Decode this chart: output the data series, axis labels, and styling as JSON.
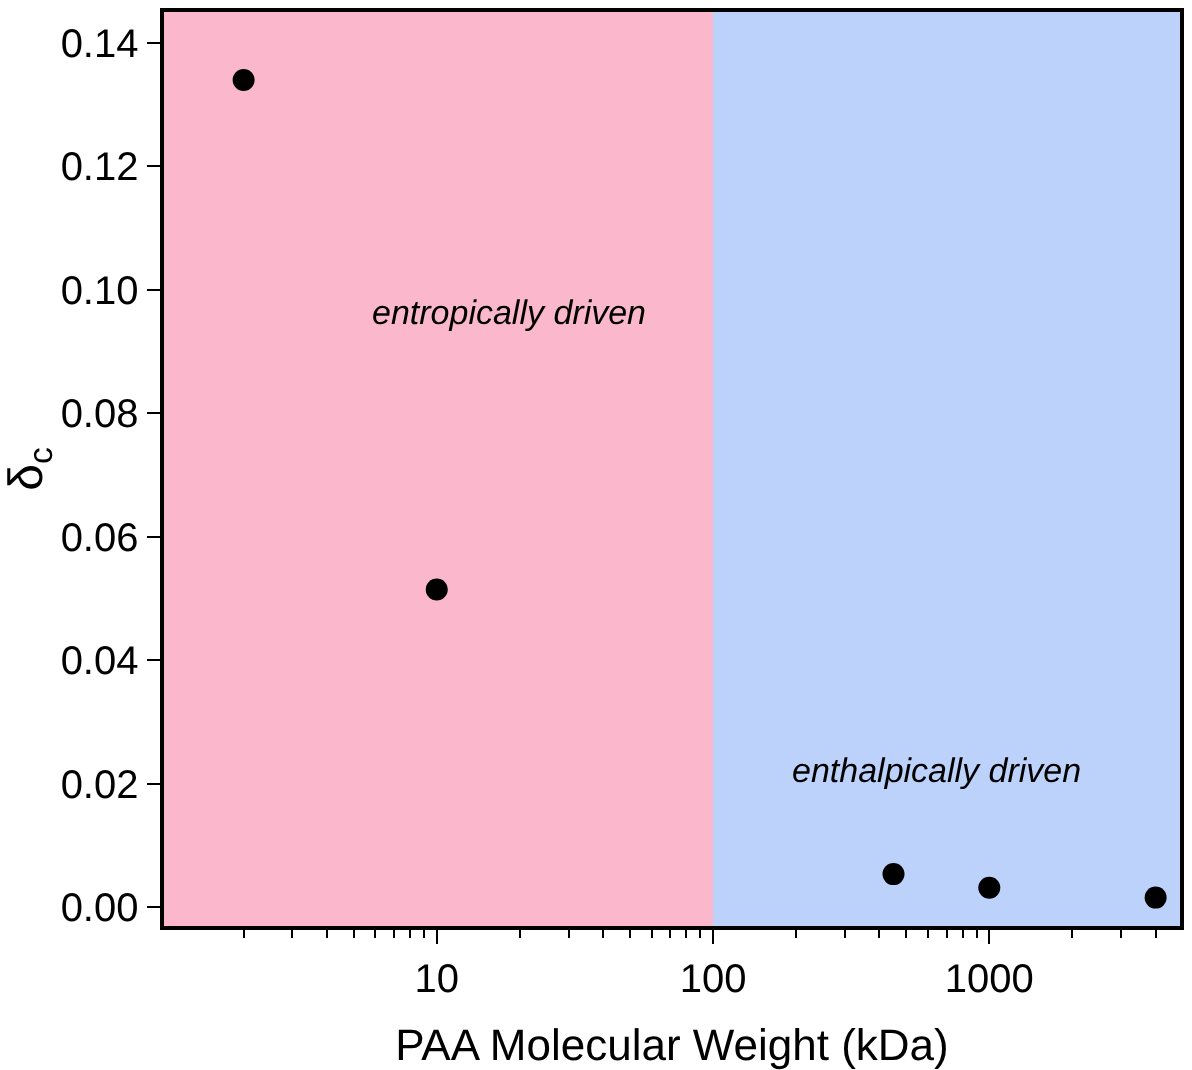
{
  "chart_data": {
    "type": "scatter",
    "xlabel": "PAA Molecular Weight (kDa)",
    "ylabel": "δ$_{c}$",
    "x": [
      2,
      10,
      450,
      1000,
      4000
    ],
    "series": [
      {
        "color": "#000000",
        "values": [
          0.134,
          0.0515,
          0.0054,
          0.0032,
          0.0016
        ]
      }
    ],
    "log": "x",
    "xlim": [
      1.03,
      4900
    ],
    "xticks": [
      10,
      100,
      1000
    ],
    "ylim": [
      -0.003,
      0.145
    ],
    "yticks": [
      {
        "value": 0,
        "label": "0.00"
      },
      {
        "value": 0.02,
        "label": "0.02"
      },
      {
        "value": 0.04,
        "label": "0.04"
      },
      {
        "value": 0.06,
        "label": "0.06"
      },
      {
        "value": 0.08,
        "label": "0.08"
      },
      {
        "value": 0.1,
        "label": "0.10"
      },
      {
        "value": 0.12,
        "label": "0.12"
      },
      {
        "value": 0.14,
        "label": "0.14"
      }
    ],
    "bands": [
      {
        "axis": "x",
        "from": 1.03,
        "to": 100,
        "color": "#fbb8cd",
        "label": "entropically driven"
      },
      {
        "axis": "x",
        "from": 100,
        "to": 4900,
        "color": "#bcd2fb",
        "label": "enthalpically driven"
      }
    ],
    "grid": false
  }
}
